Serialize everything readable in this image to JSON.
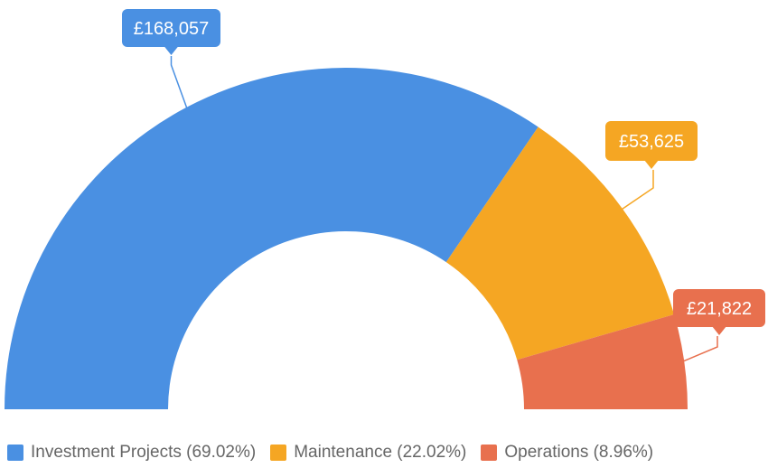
{
  "chart_data": {
    "type": "pie",
    "variant": "semi-donut",
    "currency": "£",
    "slices": [
      {
        "name": "Investment Projects",
        "value": 168057,
        "percent": 69.02,
        "value_label": "£168,057",
        "legend_label": "Investment Projects (69.02%)",
        "color": "#4A90E2"
      },
      {
        "name": "Maintenance",
        "value": 53625,
        "percent": 22.02,
        "value_label": "£53,625",
        "legend_label": "Maintenance (22.02%)",
        "color": "#F5A623"
      },
      {
        "name": "Operations",
        "value": 21822,
        "percent": 8.96,
        "value_label": "£21,822",
        "legend_label": "Operations (8.96%)",
        "color": "#E8704E"
      }
    ],
    "legend_position": "bottom-left"
  }
}
